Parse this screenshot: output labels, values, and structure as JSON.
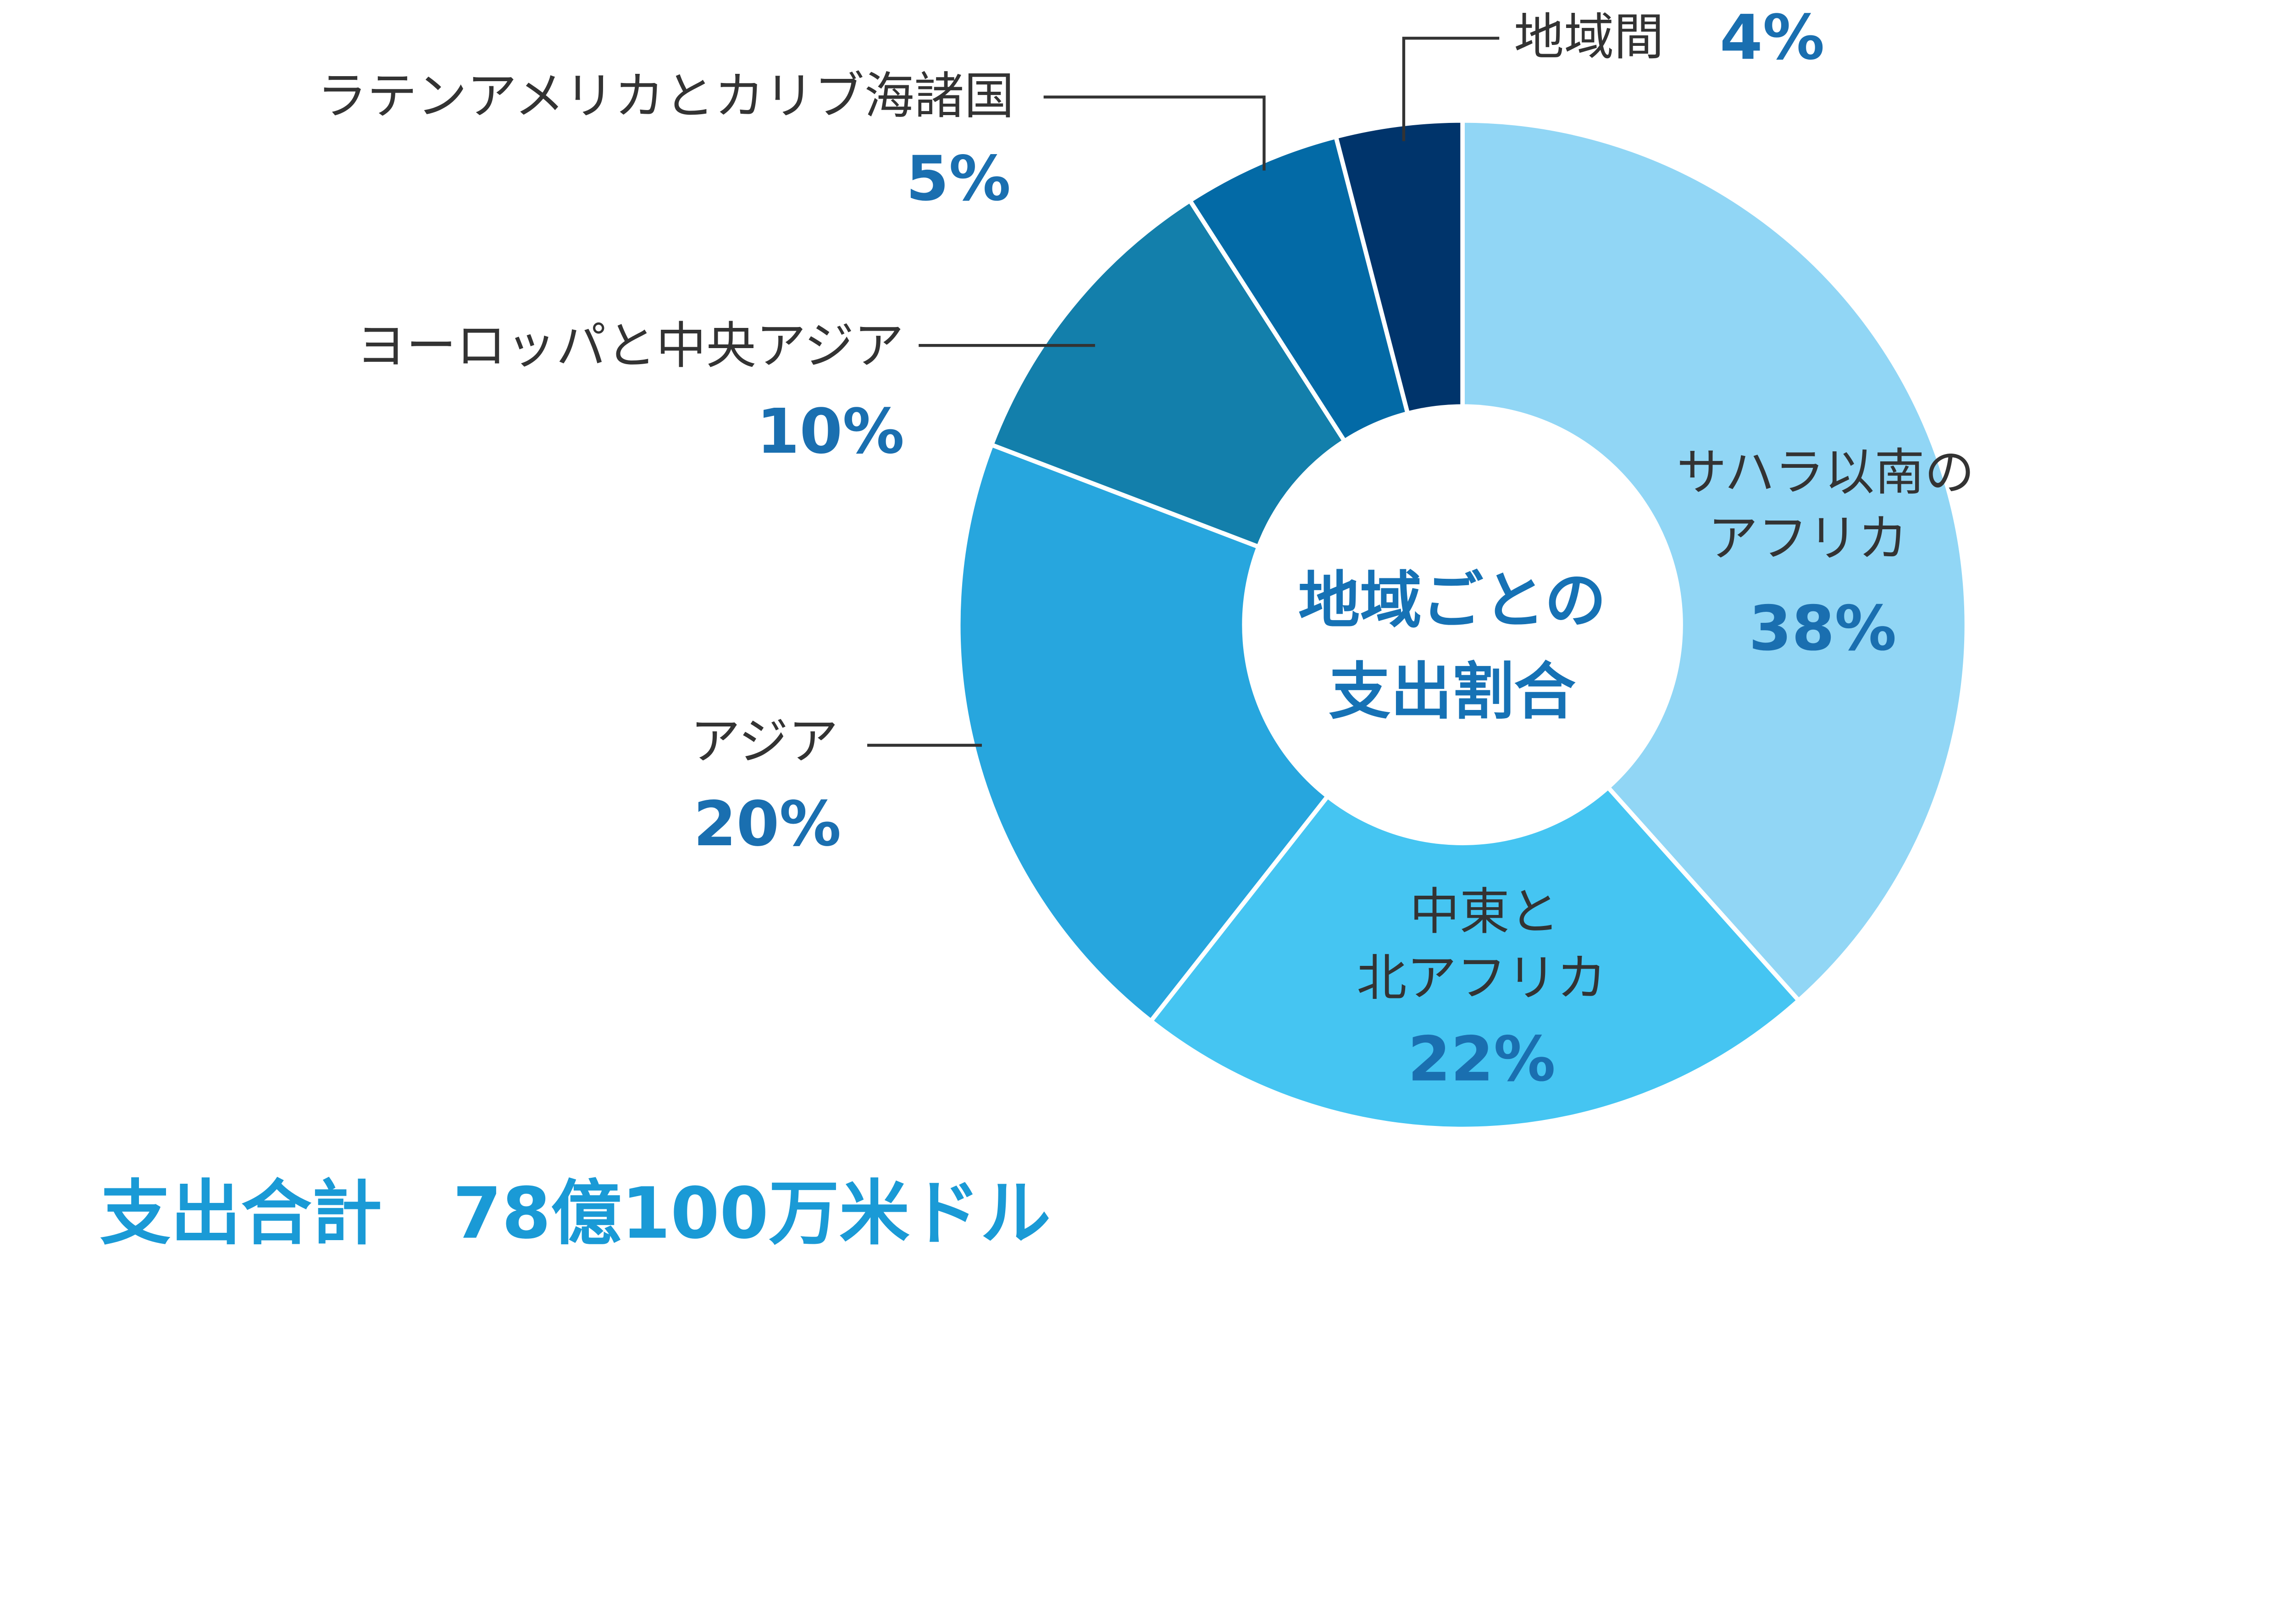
{
  "chart_data": {
    "type": "pie",
    "subtype": "donut",
    "title": "",
    "center_label": [
      "地域ごとの",
      "支出割合"
    ],
    "total_label": "支出合計　78億100万米ドル",
    "slices": [
      {
        "label": [
          "サハラ以南の",
          "アフリカ"
        ],
        "value": 38,
        "value_label": "38%",
        "color": "#91d6f5"
      },
      {
        "label": [
          "中東と",
          "北アフリカ"
        ],
        "value": 22,
        "value_label": "22%",
        "color": "#45c5f2"
      },
      {
        "label": [
          "アジア"
        ],
        "value": 20,
        "value_label": "20%",
        "color": "#27a6de"
      },
      {
        "label": [
          "ヨーロッパと中央アジア"
        ],
        "value": 10,
        "value_label": "10%",
        "color": "#137fab"
      },
      {
        "label": [
          "ラテンアメリカとカリブ海諸国"
        ],
        "value": 5,
        "value_label": "5%",
        "color": "#036aa6"
      },
      {
        "label": [
          "地域間"
        ],
        "value": 4,
        "value_label": "4%",
        "color": "#00346b"
      }
    ],
    "start_angle": "12 o'clock",
    "direction": "clockwise",
    "legend": "none"
  }
}
